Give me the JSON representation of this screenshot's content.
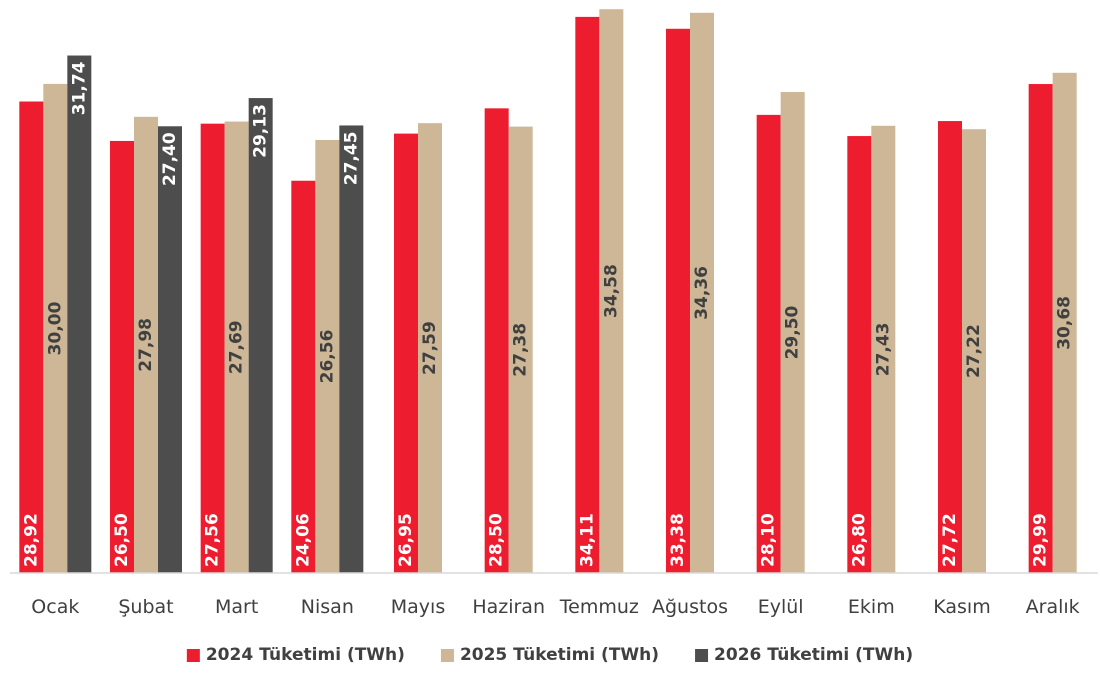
{
  "chart_data": {
    "type": "bar",
    "title": "",
    "xlabel": "",
    "ylabel": "",
    "categories": [
      "Ocak",
      "Şubat",
      "Mart",
      "Nisan",
      "Mayıs",
      "Haziran",
      "Temmuz",
      "Ağustos",
      "Eylül",
      "Ekim",
      "Kasım",
      "Aralık"
    ],
    "series": [
      {
        "name": "2024 Tüketimi (TWh)",
        "color": "#ED1C2E",
        "values": [
          28.92,
          26.5,
          27.56,
          24.06,
          26.95,
          28.5,
          34.11,
          33.38,
          28.1,
          26.8,
          27.72,
          29.99
        ],
        "labels": [
          "28,92",
          "26,50",
          "27,56",
          "24,06",
          "26,95",
          "28,50",
          "34,11",
          "33,38",
          "28,10",
          "26,80",
          "27,72",
          "29,99"
        ],
        "label_color": "#ffffff",
        "label_position": "inside-base"
      },
      {
        "name": "2025 Tüketimi (TWh)",
        "color": "#CDB797",
        "values": [
          30.0,
          27.98,
          27.69,
          26.56,
          27.59,
          27.38,
          34.58,
          34.36,
          29.5,
          27.43,
          27.22,
          30.68
        ],
        "labels": [
          "30,00",
          "27,98",
          "27,69",
          "26,56",
          "27,59",
          "27,38",
          "34,58",
          "34,36",
          "29,50",
          "27,43",
          "27,22",
          "30,68"
        ],
        "label_color": "#404040",
        "label_position": "center"
      },
      {
        "name": "2026 Tüketimi (TWh)",
        "color": "#4D4D4D",
        "values": [
          31.74,
          27.4,
          29.13,
          27.45,
          null,
          null,
          null,
          null,
          null,
          null,
          null,
          null
        ],
        "labels": [
          "31,74",
          "27,40",
          "29,13",
          "27,45",
          "",
          "",
          "",
          "",
          "",
          "",
          "",
          ""
        ],
        "label_color": "#ffffff",
        "label_position": "inside-top"
      }
    ],
    "ylim": [
      0,
      34.9
    ],
    "grid": false,
    "legend_position": "bottom",
    "axis_line_color": "#D9D9D9"
  }
}
